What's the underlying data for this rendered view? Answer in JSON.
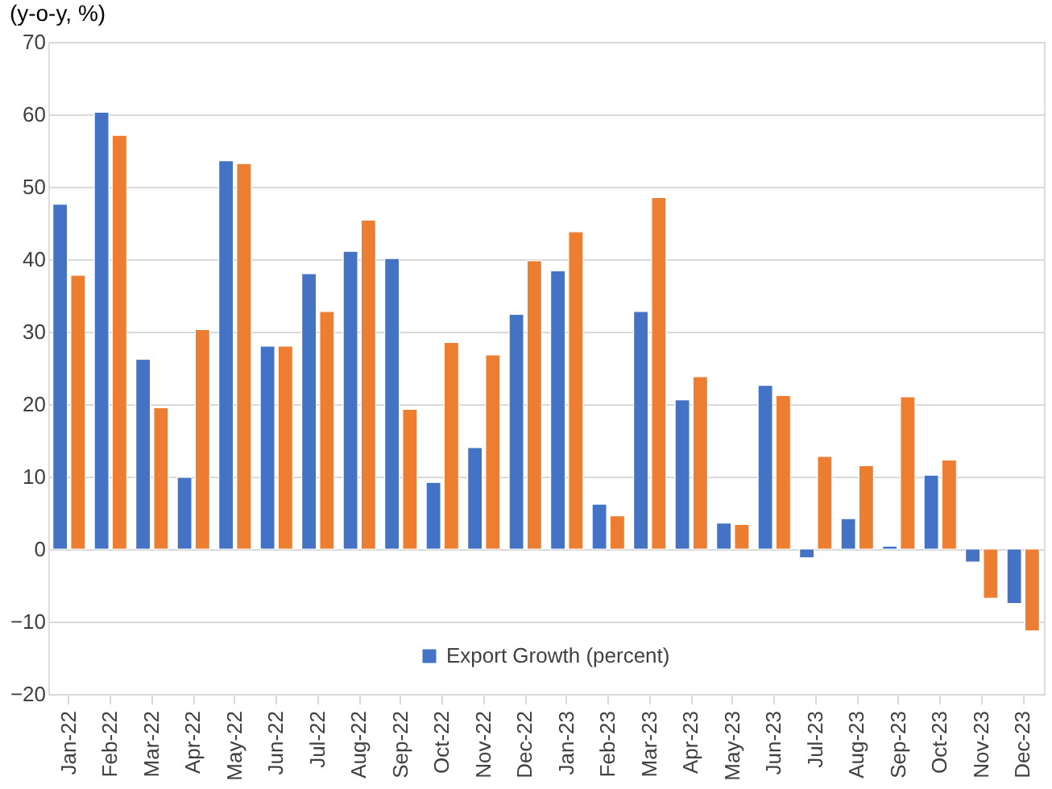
{
  "chart_data": {
    "type": "bar",
    "title": "(y-o-y, %)",
    "categories": [
      "Jan-22",
      "Feb-22",
      "Mar-22",
      "Apr-22",
      "May-22",
      "Jun-22",
      "Jul-22",
      "Aug-22",
      "Sep-22",
      "Oct-22",
      "Nov-22",
      "Dec-22",
      "Jan-23",
      "Feb-23",
      "Mar-23",
      "Apr-23",
      "May-23",
      "Jun-23",
      "Jul-23",
      "Aug-23",
      "Sep-23",
      "Oct-23",
      "Nov-23",
      "Dec-23"
    ],
    "series": [
      {
        "name": "Export Growth (percent)",
        "color": "#4472c4",
        "values": [
          47.6,
          60.3,
          26.2,
          9.9,
          53.6,
          28.0,
          38.0,
          41.1,
          40.1,
          9.2,
          14.0,
          32.4,
          38.4,
          6.2,
          32.8,
          20.6,
          3.6,
          22.6,
          -1.2,
          4.2,
          0.4,
          10.2,
          -1.8,
          -7.5
        ]
      },
      {
        "color": "#ed7d31",
        "values": [
          37.8,
          57.1,
          19.5,
          30.3,
          53.2,
          28.0,
          32.8,
          45.4,
          19.3,
          28.5,
          26.8,
          39.8,
          43.8,
          4.6,
          48.5,
          23.8,
          3.4,
          21.2,
          12.8,
          11.5,
          21.0,
          12.3,
          -6.8,
          -11.3
        ]
      }
    ],
    "ylim": [
      -20,
      70
    ],
    "yticks": [
      -20,
      -10,
      0,
      10,
      20,
      30,
      40,
      50,
      60,
      70
    ],
    "grid": "y",
    "legend": "bottom"
  }
}
